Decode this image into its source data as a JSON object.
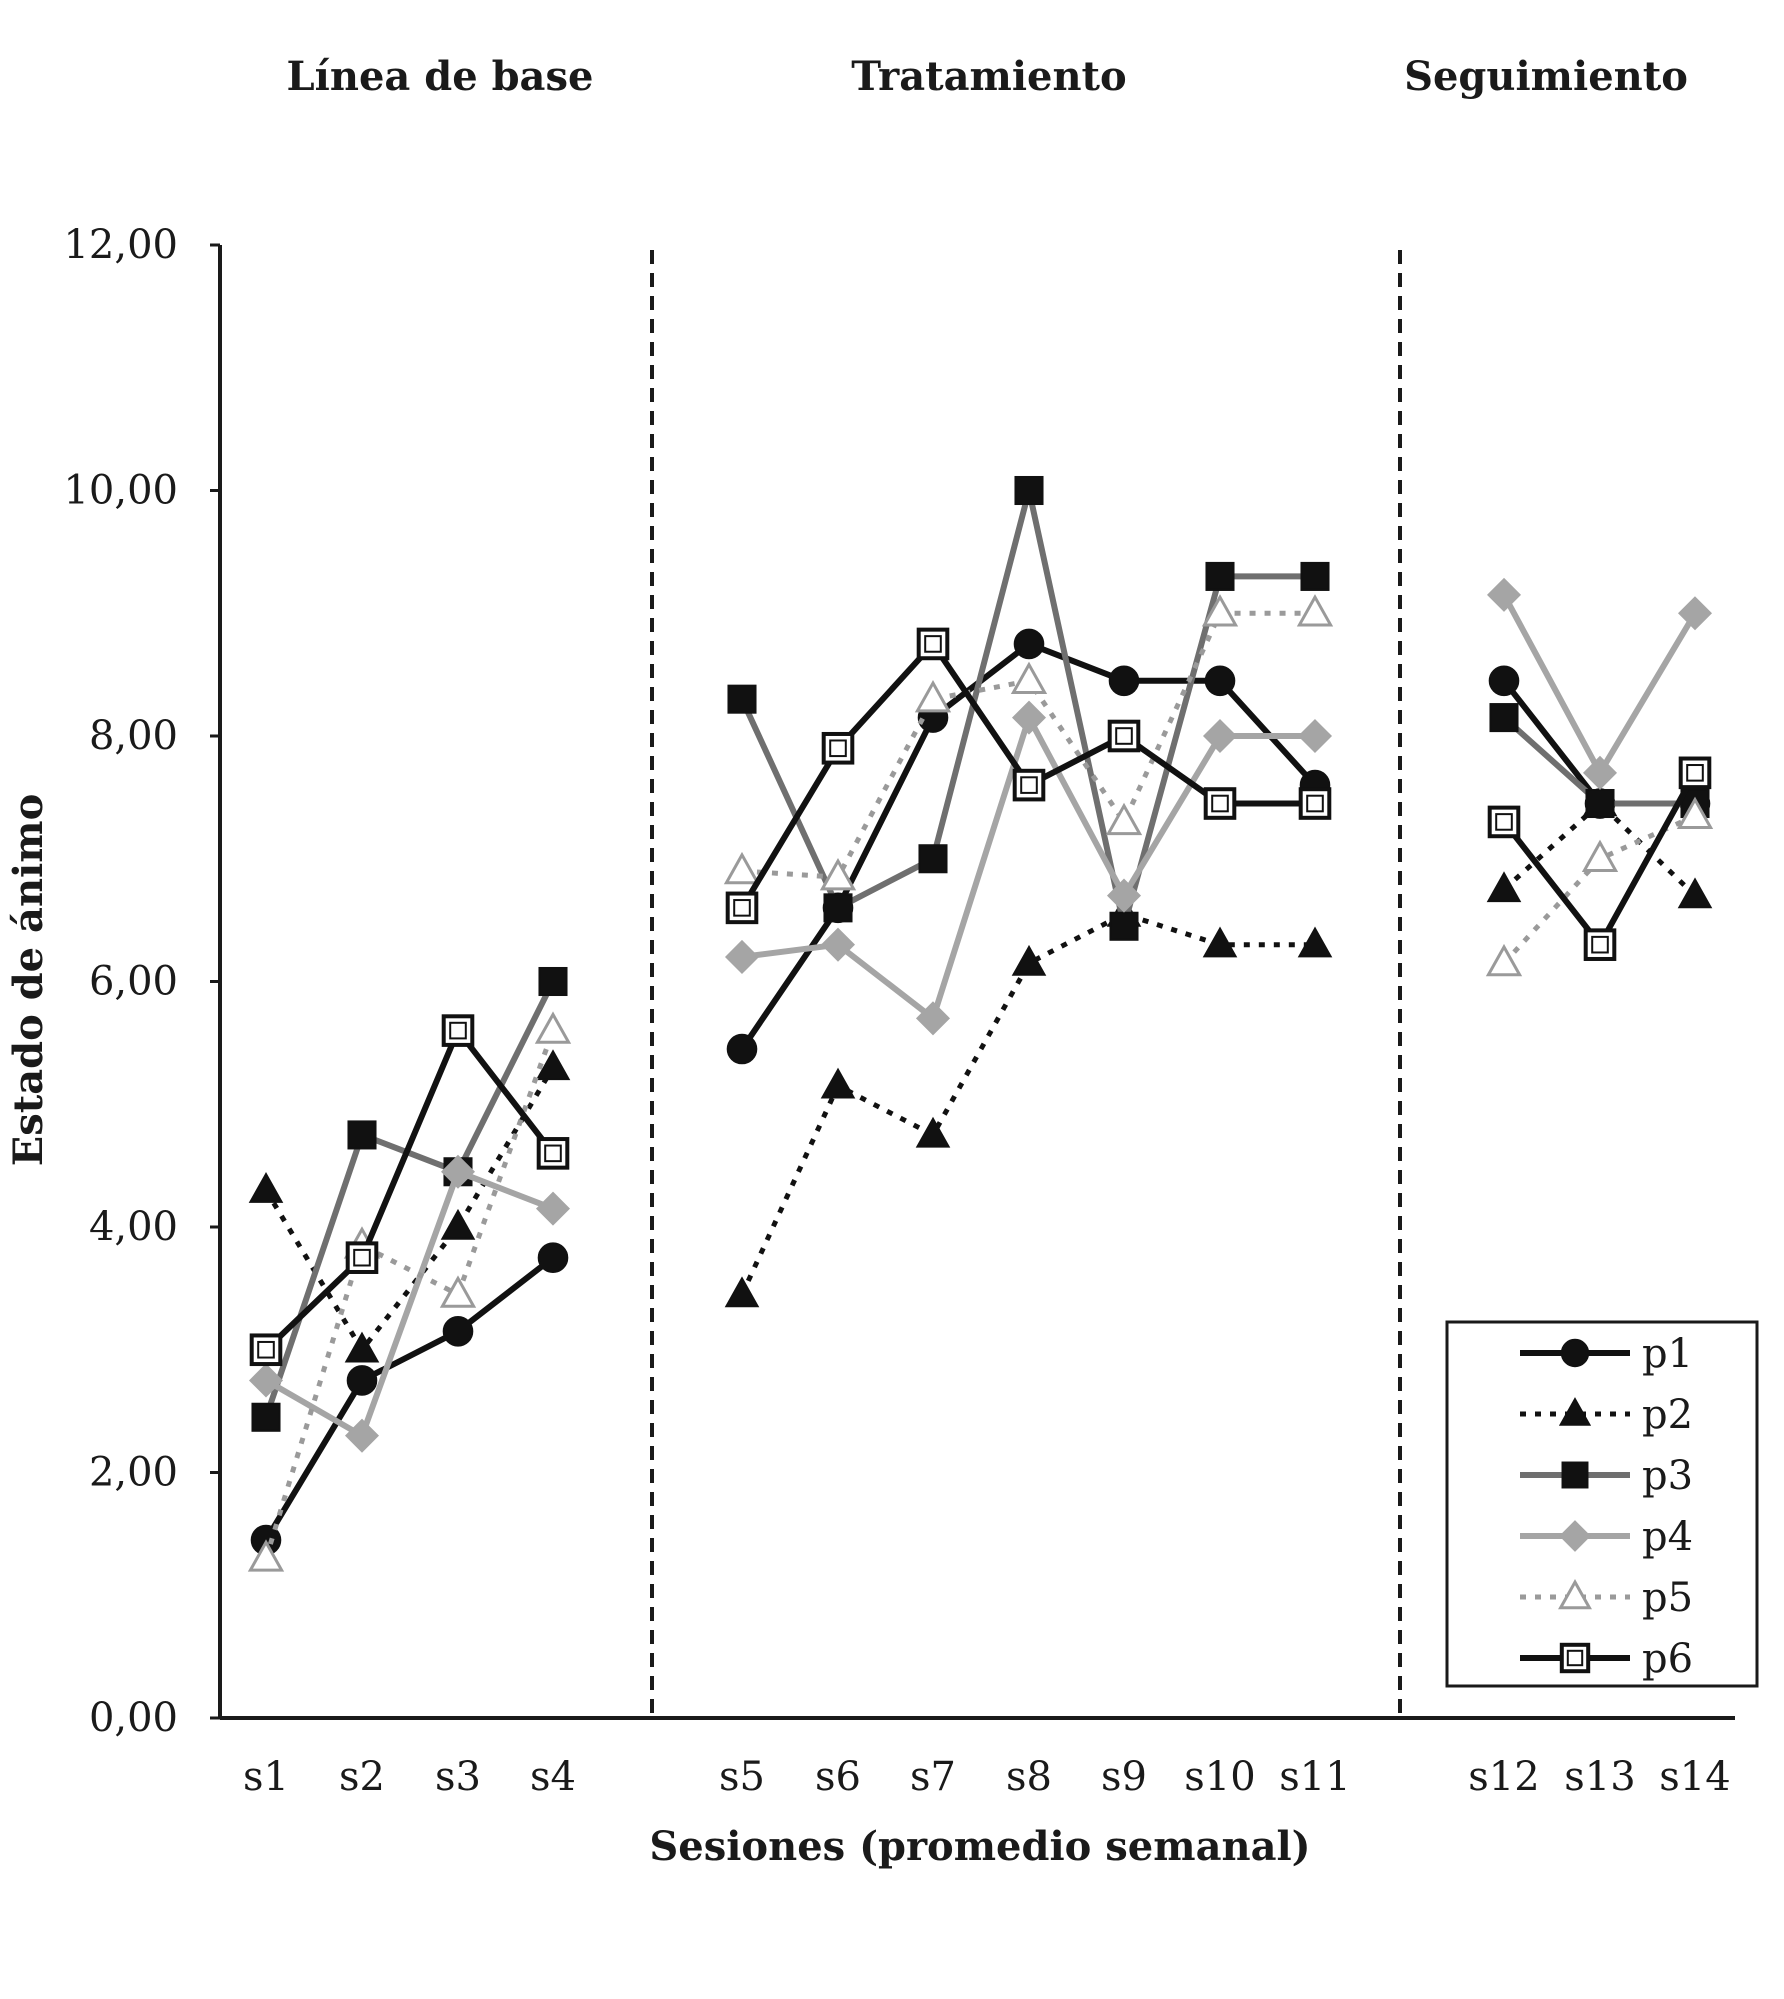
{
  "chart_data": {
    "type": "line",
    "phases": [
      {
        "label": "Línea de base",
        "sessions": [
          "s1",
          "s2",
          "s3",
          "s4"
        ]
      },
      {
        "label": "Tratamiento",
        "sessions": [
          "s5",
          "s6",
          "s7",
          "s8",
          "s9",
          "s10",
          "s11"
        ]
      },
      {
        "label": "Seguimiento",
        "sessions": [
          "s12",
          "s13",
          "s14"
        ]
      }
    ],
    "categories": [
      "s1",
      "s2",
      "s3",
      "s4",
      "s5",
      "s6",
      "s7",
      "s8",
      "s9",
      "s10",
      "s11",
      "s12",
      "s13",
      "s14"
    ],
    "xlabel": "Sesiones (promedio semanal)",
    "ylabel": "Estado de ánimo",
    "ylim": [
      0,
      12
    ],
    "yticks": [
      "0,00",
      "2,00",
      "4,00",
      "6,00",
      "8,00",
      "10,00",
      "12,00"
    ],
    "grid": false,
    "legend_position": "bottom-right",
    "series": [
      {
        "name": "p1",
        "color": "#111111",
        "dash": false,
        "marker": "circle",
        "values": [
          1.45,
          2.75,
          3.15,
          3.75,
          5.45,
          6.6,
          8.15,
          8.75,
          8.45,
          8.45,
          7.6,
          8.45,
          7.45,
          7.45
        ]
      },
      {
        "name": "p2",
        "color": "#111111",
        "dash": true,
        "marker": "triangle",
        "values": [
          4.3,
          3.0,
          4.0,
          5.3,
          3.45,
          5.15,
          4.75,
          6.15,
          6.55,
          6.3,
          6.3,
          6.75,
          7.45,
          6.7
        ]
      },
      {
        "name": "p3",
        "color": "#6f6f6f",
        "dash": false,
        "marker": "square",
        "values": [
          2.45,
          4.75,
          4.45,
          6.0,
          8.3,
          6.6,
          7.0,
          10.0,
          6.45,
          9.3,
          9.3,
          8.15,
          7.45,
          7.45
        ]
      },
      {
        "name": "p4",
        "color": "#a5a5a5",
        "dash": false,
        "marker": "diamond",
        "values": [
          2.75,
          2.3,
          4.45,
          4.15,
          6.2,
          6.3,
          5.7,
          8.15,
          6.7,
          8.0,
          8.0,
          9.15,
          7.7,
          9.0
        ]
      },
      {
        "name": "p5",
        "color": "#9a9a9a",
        "dash": true,
        "marker": "open-triangle",
        "values": [
          1.3,
          3.85,
          3.45,
          5.6,
          6.9,
          6.85,
          8.3,
          8.45,
          7.3,
          9.0,
          9.0,
          6.15,
          7.0,
          7.35
        ]
      },
      {
        "name": "p6",
        "color": "#111111",
        "dash": false,
        "marker": "open-square",
        "values": [
          3.0,
          3.75,
          5.6,
          4.6,
          6.6,
          7.9,
          8.75,
          7.6,
          8.0,
          7.45,
          7.45,
          7.3,
          6.3,
          7.7
        ]
      }
    ]
  }
}
